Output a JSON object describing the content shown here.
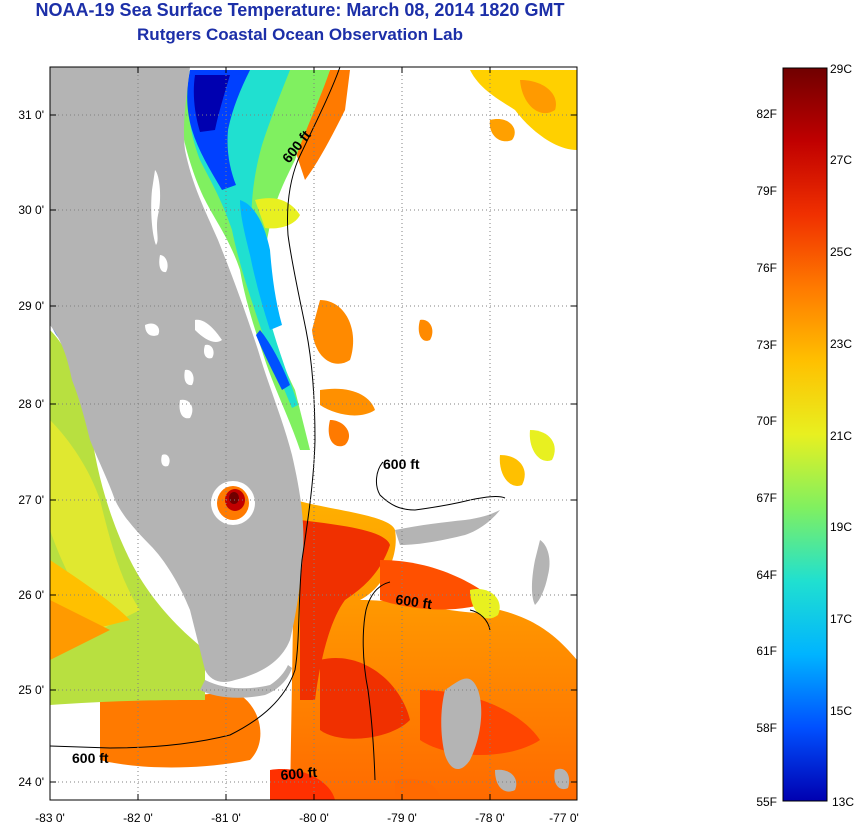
{
  "title": {
    "line1": "NOAA-19 Sea Surface Temperature:  March 08, 2014 1820 GMT",
    "line2": "Rutgers Coastal Ocean Observation Lab"
  },
  "axes": {
    "lat_labels": [
      "31 0'",
      "30 0'",
      "29 0'",
      "28 0'",
      "27 0'",
      "26 0'",
      "25 0'",
      "24 0'"
    ],
    "lon_labels": [
      "-83 0'",
      "-82 0'",
      "-81 0'",
      "-80 0'",
      "-79 0'",
      "-78 0'",
      "-77 0'"
    ]
  },
  "contours": {
    "label": "600 ft"
  },
  "colorbar": {
    "celsius_labels": [
      "29C",
      "27C",
      "25C",
      "23C",
      "21C",
      "19C",
      "17C",
      "15C",
      "13C"
    ],
    "fahrenheit_labels": [
      "82F",
      "79F",
      "76F",
      "73F",
      "70F",
      "67F",
      "64F",
      "61F",
      "58F",
      "55F"
    ],
    "colors": [
      "#0000b0",
      "#0050ff",
      "#00b4ff",
      "#20e0d0",
      "#80f060",
      "#e8f020",
      "#ffc000",
      "#ff7a00",
      "#f03000",
      "#c00000",
      "#700000"
    ]
  },
  "colors": {
    "land": "#b4b4b4",
    "cloud": "#ffffff",
    "title": "#1c2fa8"
  }
}
